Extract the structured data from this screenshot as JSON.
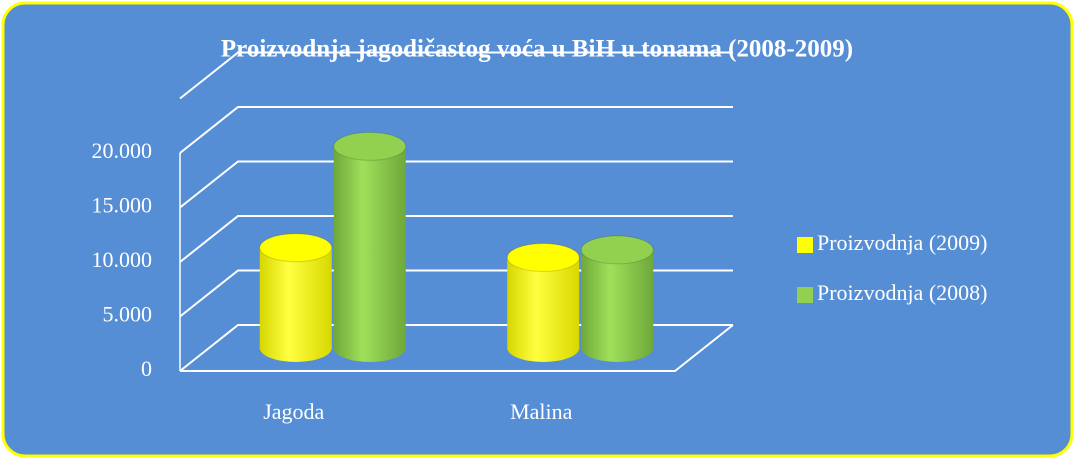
{
  "chart_data": {
    "type": "bar3d",
    "title": "Proizvodnja jagodičastog voća u BiH u tonama (2008-2009)",
    "categories": [
      "Jagoda",
      "Malina"
    ],
    "series": [
      {
        "name": "Proizvodnja (2009)",
        "color": "#ffff00",
        "values": [
          9200,
          8300
        ]
      },
      {
        "name": "Proizvodnja (2008)",
        "color": "#92d050",
        "values": [
          18500,
          9000
        ]
      }
    ],
    "ylim": [
      0,
      25000
    ],
    "yticks": [
      0,
      {
        "value": 5000,
        "label": "5.000"
      },
      {
        "value": 10000,
        "label": "10.000"
      },
      {
        "value": 15000,
        "label": "15.000"
      },
      {
        "value": 20000,
        "label": "20.000"
      }
    ],
    "grid": true,
    "legend": "right"
  }
}
